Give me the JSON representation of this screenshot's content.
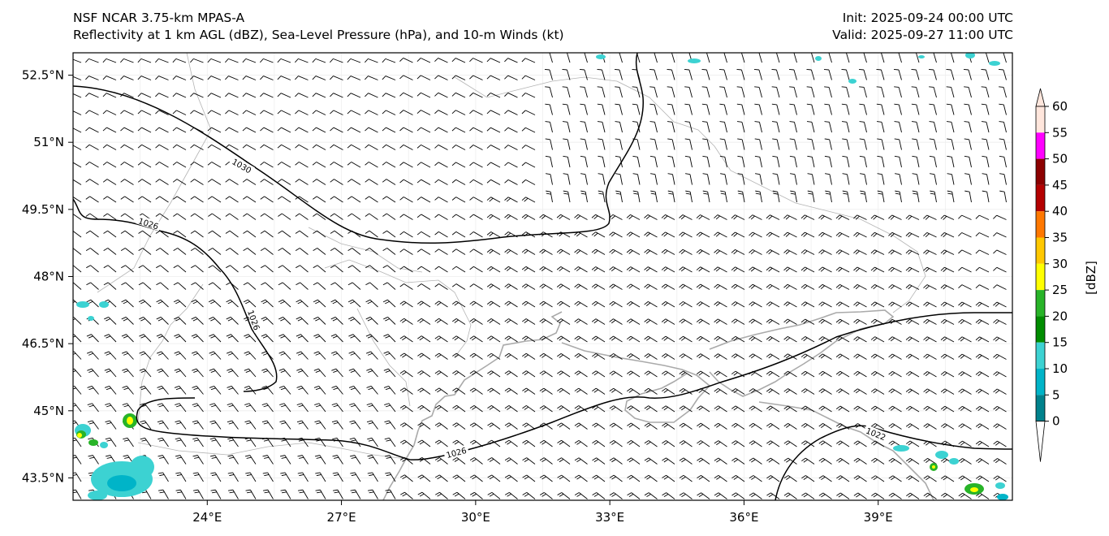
{
  "header": {
    "model": "NSF NCAR 3.75-km MPAS-A",
    "fields": "Reflectivity at 1 km AGL (dBZ), Sea-Level Pressure (hPa), and 10-m Winds (kt)",
    "init": "Init: 2025-09-24 00:00 UTC",
    "valid": "Valid: 2025-09-27 11:00 UTC"
  },
  "map": {
    "lon_range": [
      21,
      42
    ],
    "lat_range": [
      43,
      53
    ],
    "lat_labels": [
      "52.5°N",
      "51°N",
      "49.5°N",
      "48°N",
      "46.5°N",
      "45°N",
      "43.5°N"
    ],
    "lat_values": [
      52.5,
      51,
      49.5,
      48,
      46.5,
      45,
      43.5
    ],
    "lon_labels": [
      "24°E",
      "27°E",
      "30°E",
      "33°E",
      "36°E",
      "39°E"
    ],
    "lon_values": [
      24,
      27,
      30,
      33,
      36,
      39
    ],
    "isobar_labels": [
      "1030",
      "1026",
      "1026",
      "1026",
      "1022"
    ],
    "colors": {
      "isobar": "#000000",
      "coast": "#aaaaaa",
      "grid": "#eeeeee"
    }
  },
  "colorbar": {
    "unit_label": "[dBZ]",
    "ticks": [
      "0",
      "5",
      "10",
      "15",
      "20",
      "25",
      "30",
      "35",
      "40",
      "45",
      "50",
      "55",
      "60"
    ],
    "colors": [
      "#ffffff",
      "#00828c",
      "#00b4c8",
      "#3cd2d2",
      "#008c00",
      "#28b428",
      "#ffff00",
      "#ffc800",
      "#ff7800",
      "#b40000",
      "#8c0000",
      "#ff00ff",
      "#ffe6dc"
    ]
  }
}
